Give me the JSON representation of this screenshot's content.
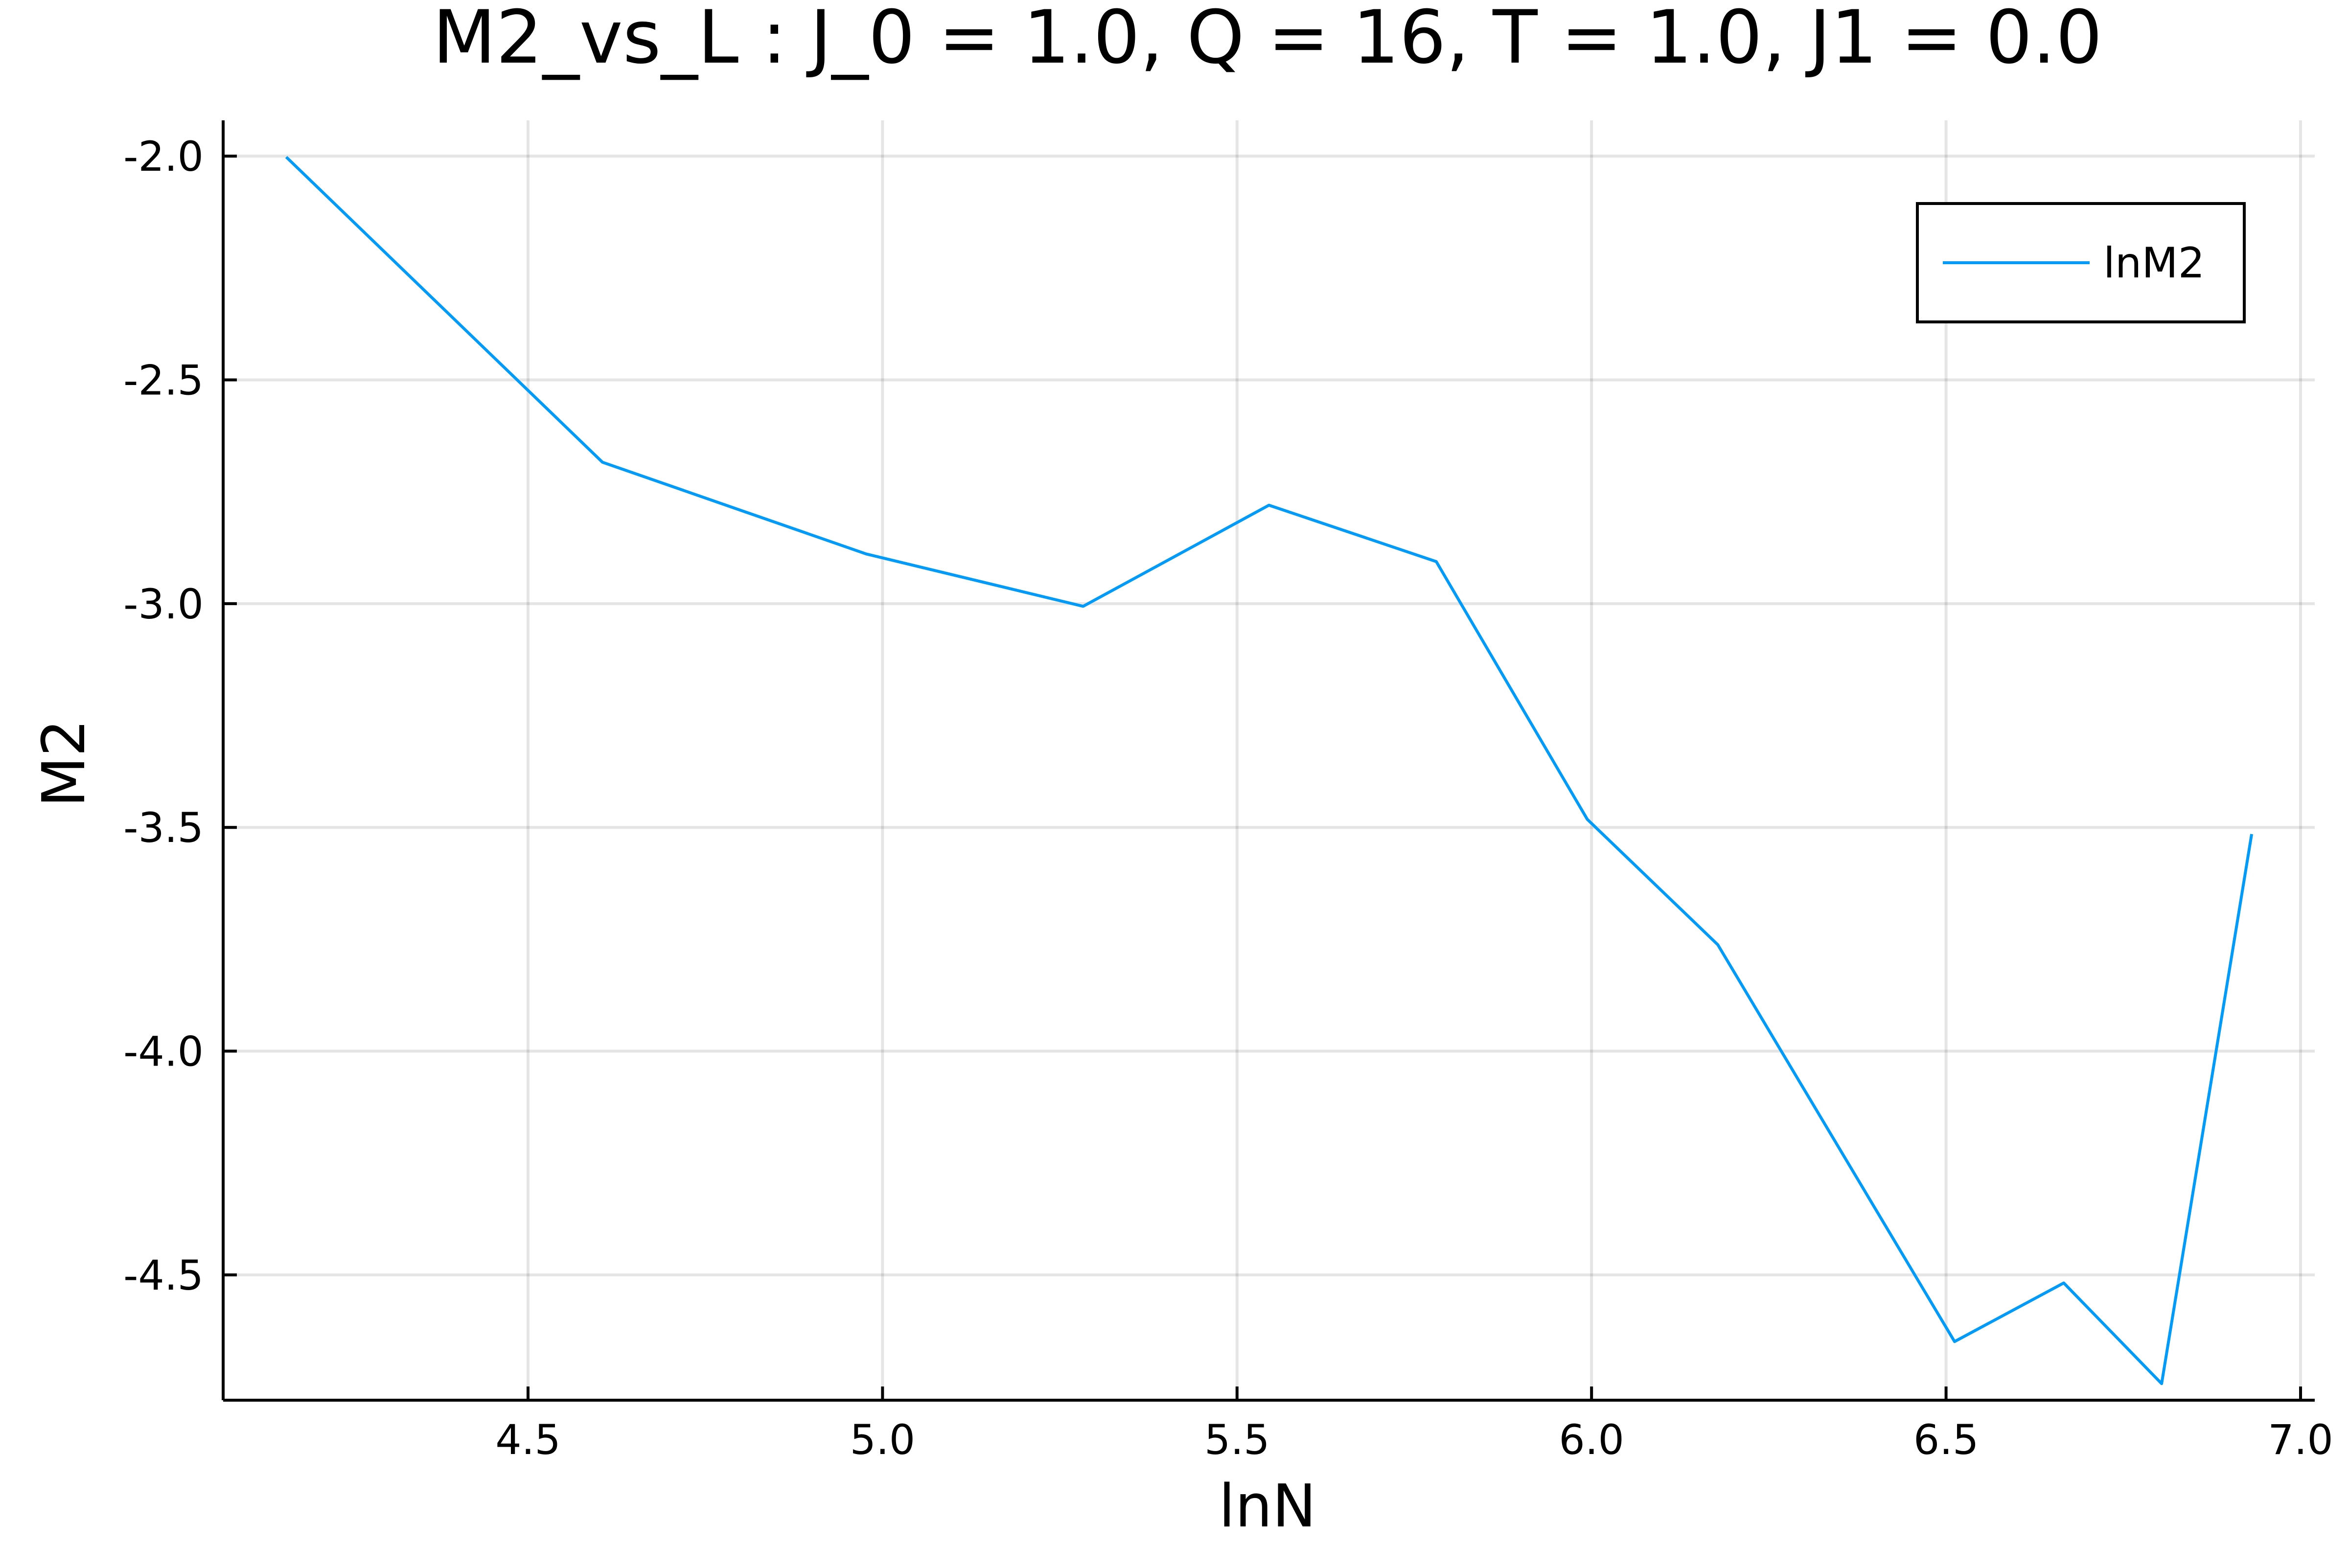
{
  "chart_data": {
    "type": "line",
    "title": "M2_vs_L : J_0 = 1.0, Q = 16, T = 1.0, J1 = 0.0",
    "xlabel": "lnN",
    "ylabel": "M2",
    "xlim": [
      4.07,
      7.02
    ],
    "ylim": [
      -4.78,
      -1.92
    ],
    "xticks": [
      4.5,
      5.0,
      5.5,
      6.0,
      6.5,
      7.0
    ],
    "xtick_labels": [
      "4.5",
      "5.0",
      "5.5",
      "6.0",
      "6.5",
      "7.0"
    ],
    "yticks": [
      -2.0,
      -2.5,
      -3.0,
      -3.5,
      -4.0,
      -4.5
    ],
    "ytick_labels": [
      "-2.0",
      "-2.5",
      "-3.0",
      "-3.5",
      "-4.0",
      "-4.5"
    ],
    "grid": true,
    "legend_position": "top-right",
    "series": [
      {
        "name": "lnM2",
        "color": "#009af9",
        "x": [
          4.159,
          4.605,
          4.977,
          5.283,
          5.545,
          5.781,
          5.994,
          6.178,
          6.512,
          6.666,
          6.804,
          6.931
        ],
        "y": [
          -2.002,
          -2.684,
          -2.889,
          -3.006,
          -2.78,
          -2.906,
          -3.482,
          -3.762,
          -4.649,
          -4.518,
          -4.743,
          -3.515
        ]
      }
    ]
  }
}
